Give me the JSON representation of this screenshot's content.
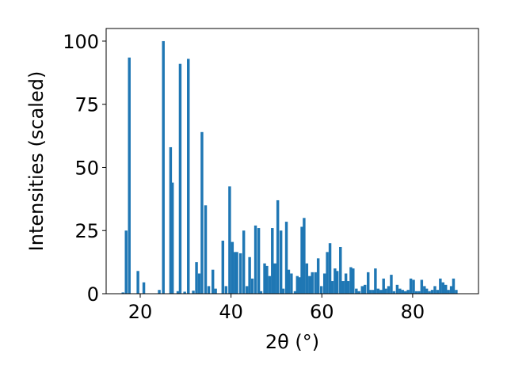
{
  "chart_data": {
    "type": "bar",
    "title": "",
    "xlabel": "2θ (°)",
    "ylabel": "Intensities (scaled)",
    "xlim": [
      12.5,
      94.5
    ],
    "ylim": [
      0,
      105
    ],
    "xticks": [
      20,
      40,
      60,
      80
    ],
    "yticks": [
      0,
      25,
      50,
      75,
      100
    ],
    "grid": false,
    "bar_color": "#1f77b4",
    "bar_width": 0.6,
    "x": [
      16.2,
      16.9,
      17.6,
      19.5,
      20.8,
      24.2,
      25.1,
      26.7,
      27.1,
      28.3,
      28.8,
      29.8,
      30.6,
      31.7,
      32.4,
      33.0,
      33.6,
      34.4,
      35.1,
      36.0,
      36.6,
      38.2,
      38.9,
      39.7,
      40.3,
      40.9,
      41.3,
      42.1,
      42.8,
      43.5,
      44.1,
      44.7,
      45.4,
      46.1,
      46.6,
      47.4,
      47.9,
      48.5,
      49.1,
      49.7,
      50.3,
      51.0,
      51.5,
      52.2,
      52.7,
      53.3,
      54.1,
      54.6,
      55.1,
      55.6,
      56.1,
      56.7,
      57.3,
      57.9,
      58.6,
      59.2,
      59.9,
      60.6,
      61.2,
      61.8,
      62.3,
      62.9,
      63.4,
      64.1,
      64.7,
      65.3,
      65.8,
      66.4,
      66.9,
      67.6,
      68.2,
      68.9,
      69.5,
      70.2,
      70.7,
      71.3,
      71.8,
      72.4,
      73.0,
      73.6,
      74.1,
      74.7,
      75.3,
      75.9,
      76.6,
      77.2,
      77.8,
      78.4,
      79.0,
      79.6,
      80.2,
      80.8,
      81.4,
      82.0,
      82.6,
      83.1,
      83.7,
      84.3,
      84.9,
      85.5,
      86.1,
      86.7,
      87.3,
      87.9,
      88.5,
      89.0,
      89.6
    ],
    "values": [
      0.5,
      25,
      93.5,
      9,
      4.5,
      1.5,
      100,
      58,
      44,
      1,
      91,
      0.8,
      93,
      1.2,
      12.5,
      8,
      64,
      35,
      3,
      9.5,
      2,
      21,
      3,
      42.5,
      20.5,
      16.5,
      16.5,
      16,
      25,
      3,
      14.5,
      6,
      27,
      26,
      1,
      12,
      11,
      7,
      26,
      12,
      37,
      25,
      2,
      28.5,
      9.5,
      8,
      1,
      7,
      6.5,
      26.5,
      30,
      12,
      7,
      8.5,
      8.5,
      14,
      3,
      8,
      16.5,
      20,
      5,
      10,
      9,
      18.5,
      5,
      8,
      5,
      10.5,
      10,
      2,
      1,
      3,
      3.5,
      8.5,
      1.5,
      1.5,
      10,
      2,
      1.5,
      6,
      2,
      3,
      7.5,
      1,
      3.5,
      2,
      1.5,
      1,
      1.5,
      6,
      5.5,
      1,
      1,
      5.5,
      3,
      2,
      1,
      1.5,
      3,
      1.5,
      6,
      4.5,
      3.5,
      1.5,
      3,
      6,
      1.5
    ]
  }
}
